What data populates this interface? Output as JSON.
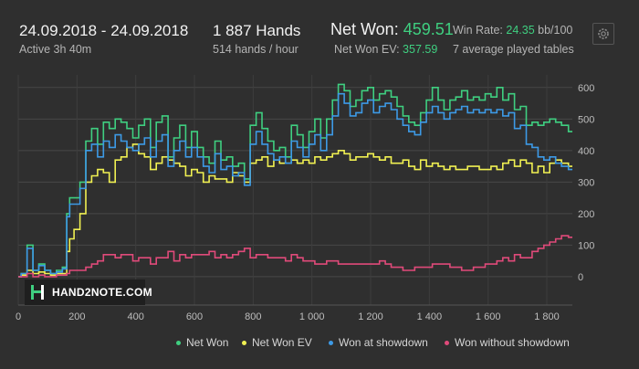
{
  "header": {
    "date_range": "24.09.2018 - 24.09.2018",
    "active": "Active 3h 40m",
    "hands": "1 887 Hands",
    "hands_per_hour": "514 hands / hour",
    "net_won_label": "Net Won:",
    "net_won_value": "459.51",
    "net_won_ev_label": "Net Won  EV:",
    "net_won_ev_value": "357.59",
    "win_rate_label": "Win Rate:",
    "win_rate_value": "24.35",
    "win_rate_unit": "bb/100",
    "tables": "7 average played tables",
    "settings_icon": "gear-icon"
  },
  "logo": {
    "text": "HAND2NOTE.COM"
  },
  "colors": {
    "net_won": "#3fcf80",
    "net_won_ev": "#f0f052",
    "won_at_showdown": "#3d9ae6",
    "won_without_showdown": "#e04a7a",
    "grid": "#474747",
    "background": "#2f2f2f"
  },
  "chart_data": {
    "type": "line",
    "xlim": [
      0,
      1887
    ],
    "ylim": [
      -90,
      640
    ],
    "x_ticks": [
      0,
      200,
      400,
      600,
      800,
      1000,
      1200,
      1400,
      1600,
      1800
    ],
    "x_tick_labels": [
      "0",
      "200",
      "400",
      "600",
      "800",
      "1 000",
      "1 200",
      "1 400",
      "1 600",
      "1 800"
    ],
    "y_ticks": [
      0,
      100,
      200,
      300,
      400,
      500,
      600
    ],
    "y_tick_labels": [
      "0",
      "100",
      "200",
      "300",
      "400",
      "500",
      "600"
    ],
    "grid": true,
    "legend_position": "bottom-right",
    "x": [
      0,
      20,
      40,
      60,
      80,
      100,
      120,
      140,
      160,
      170,
      180,
      200,
      220,
      240,
      260,
      280,
      300,
      320,
      340,
      360,
      380,
      400,
      420,
      440,
      460,
      480,
      500,
      520,
      540,
      560,
      580,
      600,
      620,
      640,
      660,
      680,
      700,
      720,
      740,
      760,
      780,
      800,
      820,
      840,
      860,
      880,
      900,
      920,
      940,
      960,
      980,
      1000,
      1020,
      1040,
      1060,
      1080,
      1100,
      1120,
      1140,
      1160,
      1180,
      1200,
      1220,
      1240,
      1260,
      1280,
      1300,
      1320,
      1340,
      1360,
      1380,
      1400,
      1420,
      1440,
      1460,
      1480,
      1500,
      1520,
      1540,
      1560,
      1580,
      1600,
      1620,
      1640,
      1660,
      1680,
      1700,
      1720,
      1740,
      1760,
      1780,
      1800,
      1820,
      1840,
      1860,
      1887
    ],
    "series": [
      {
        "name": "Net Won",
        "color": "#3fcf80",
        "values": [
          0,
          10,
          100,
          20,
          40,
          20,
          10,
          20,
          30,
          200,
          250,
          250,
          300,
          430,
          470,
          420,
          490,
          470,
          500,
          490,
          470,
          440,
          480,
          500,
          410,
          490,
          510,
          380,
          440,
          480,
          410,
          460,
          410,
          380,
          360,
          430,
          370,
          380,
          350,
          360,
          310,
          480,
          520,
          470,
          430,
          400,
          410,
          380,
          480,
          450,
          410,
          460,
          500,
          440,
          500,
          560,
          610,
          590,
          540,
          560,
          590,
          600,
          560,
          580,
          590,
          570,
          540,
          510,
          490,
          480,
          520,
          560,
          600,
          560,
          530,
          560,
          570,
          590,
          560,
          570,
          560,
          580,
          570,
          600,
          560,
          580,
          530,
          540,
          480,
          490,
          480,
          490,
          500,
          490,
          480,
          460
        ]
      },
      {
        "name": "Net Won  EV",
        "color": "#f0f052",
        "values": [
          0,
          5,
          20,
          10,
          15,
          10,
          5,
          10,
          10,
          80,
          120,
          150,
          200,
          300,
          320,
          340,
          330,
          300,
          370,
          380,
          410,
          420,
          390,
          380,
          340,
          360,
          380,
          370,
          360,
          350,
          320,
          340,
          330,
          300,
          320,
          310,
          310,
          300,
          330,
          320,
          300,
          360,
          370,
          380,
          350,
          370,
          360,
          360,
          370,
          360,
          370,
          360,
          380,
          370,
          380,
          390,
          400,
          390,
          370,
          380,
          380,
          390,
          380,
          370,
          380,
          360,
          360,
          370,
          350,
          340,
          370,
          350,
          360,
          350,
          340,
          350,
          340,
          340,
          350,
          350,
          340,
          340,
          350,
          340,
          360,
          370,
          350,
          370,
          360,
          330,
          350,
          330,
          360,
          370,
          360,
          350
        ]
      },
      {
        "name": "Won at showdown",
        "color": "#3d9ae6",
        "values": [
          0,
          10,
          90,
          20,
          35,
          20,
          10,
          15,
          25,
          190,
          230,
          230,
          280,
          400,
          420,
          380,
          430,
          410,
          450,
          430,
          410,
          400,
          420,
          440,
          380,
          430,
          450,
          350,
          400,
          430,
          380,
          410,
          380,
          350,
          330,
          390,
          340,
          350,
          320,
          330,
          290,
          420,
          460,
          420,
          390,
          370,
          380,
          360,
          430,
          410,
          380,
          420,
          450,
          400,
          450,
          510,
          580,
          550,
          510,
          520,
          550,
          560,
          520,
          540,
          550,
          530,
          500,
          480,
          460,
          450,
          490,
          520,
          540,
          520,
          500,
          520,
          530,
          540,
          520,
          530,
          520,
          530,
          520,
          530,
          510,
          520,
          470,
          480,
          420,
          410,
          380,
          370,
          380,
          360,
          350,
          340
        ]
      },
      {
        "name": "Won without showdown",
        "color": "#e04a7a",
        "values": [
          0,
          0,
          10,
          0,
          5,
          0,
          0,
          5,
          5,
          10,
          20,
          20,
          20,
          30,
          40,
          50,
          70,
          70,
          60,
          70,
          70,
          50,
          60,
          60,
          40,
          60,
          60,
          80,
          50,
          70,
          60,
          70,
          70,
          70,
          80,
          60,
          70,
          60,
          70,
          80,
          90,
          60,
          70,
          70,
          60,
          60,
          60,
          50,
          70,
          60,
          50,
          50,
          40,
          40,
          50,
          50,
          40,
          40,
          40,
          40,
          40,
          40,
          40,
          50,
          40,
          30,
          30,
          20,
          20,
          30,
          30,
          30,
          40,
          40,
          40,
          30,
          30,
          20,
          20,
          30,
          30,
          40,
          40,
          50,
          60,
          50,
          70,
          60,
          60,
          80,
          90,
          100,
          110,
          120,
          130,
          125
        ]
      }
    ]
  }
}
